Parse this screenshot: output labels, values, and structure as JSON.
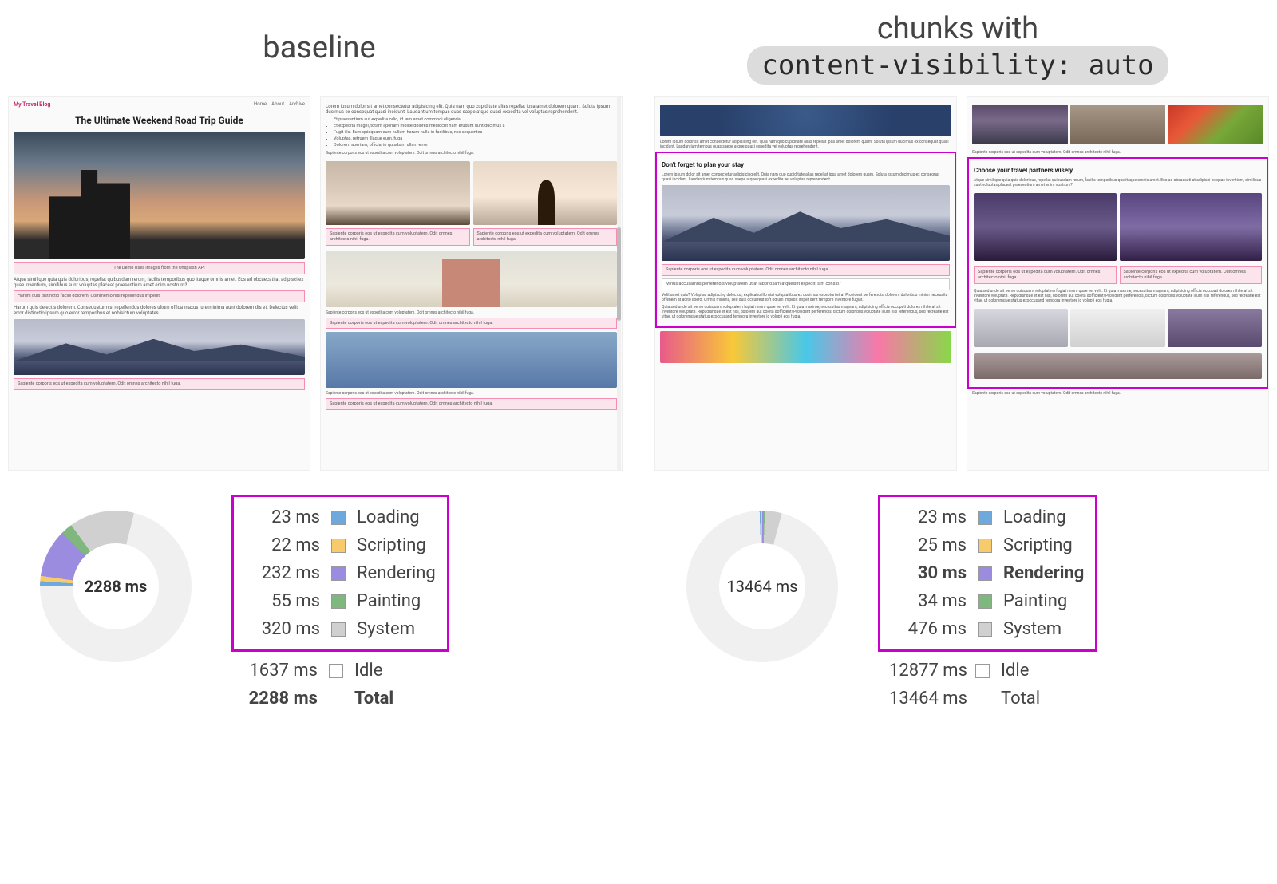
{
  "titles": {
    "left": "baseline",
    "right_line1": "chunks with",
    "right_code": "content-visibility: auto"
  },
  "blog": {
    "brand": "My Travel Blog",
    "nav": [
      "Home",
      "About",
      "Archive"
    ],
    "title": "The Ultimate Weekend Road Trip Guide",
    "caption": "The Demo Uses Images from the Unsplash API",
    "sub1": "Don't forget to plan your stay",
    "sub2": "Choose your travel partners wisely",
    "lorem1": "Atque similique quia quis doloribus, repellat quibusdam rerum, facilis temporibus quo itaque omnis amet. Eos ad obcaecati at adipisci ex quae inventium, similibus sunt voluptas placeat praesentium amet enim nostrum?",
    "lorem2": "Harum quis distinctio facile dolorem. Commemo nisi repellendus impedit.",
    "lorem3": "Harum quis delectis dolorem. Consequatur nisi repellendus dolores ultum offica maxus iure minima aunt dolorem dis et. Delectus velit error distinctio ipsum quo error temporibus et nobisictum voluptates.",
    "lorem4": "Lorem ipsum dolor sit amet consectetur adipisicing elit. Quia nam quo cupiditate alias repellat ipsa amet dolorem quam. Soluta ipsum ducimus ex consequat quasi incidunt. Laudantium tempus quas saepe atque quasi expedita vel voluptas reprehenderit.",
    "lorem5": "Quia sed unde sit nemo quisquam voluptatem fugiat rerum quae vel velit. Et quia maxime, necessitas magnam, adipisicing officia occupati dolores nihilerat sit inventore voluptate. Repudiandae et est nisi, dolorem aut coleta dofficient! Provident perferendis, dictum doloribus voluptate illum nisi referendus, sed recreatie est vitae, ut doloremque status exoccusand tempora inventore id volupti eos fugia.",
    "lorem_short": "Sapiente corporis eos ut expedita cum voluptatem. Odit omnes architecto nihil fuga.",
    "bullets": [
      "Et praesentium aut expedita odio, id rem amet commodi eligenda",
      "Et expedita magni, totam aperiam molite dolores mediocrit nam erudunt dunt ducimus a",
      "Fugit illo. Eum quisquam eum nullam harum nulla in facilibus, nec sequentes",
      "Voluptas, retruem illaque eum, fuga",
      "Dolorem aperiam, officia, in quisdsim ullam error"
    ],
    "note": "Minus accusamus perferendis voluptatem ut at laboriosam atquesint expediti sint consid?",
    "note2": "Velit amet quis? Voluptas adipiscing delectus, explicabo illo nisi voluptatibus ex ducimus excepturi et at Provident perferendis, dolorem doloribus minim necessita offenem at adito libero. Omnis minima, sed duis occurreat loft odium impedit imper dent tempore inventore fugiat."
  },
  "colors": {
    "loading": "#6fa8dc",
    "scripting": "#f7cb6b",
    "rendering": "#9b8ce0",
    "painting": "#7fb77e",
    "system": "#d0d0d0",
    "idle": "#f0f0f0",
    "highlight": "#cc00cc"
  },
  "left_stats": {
    "center": "2288 ms",
    "rows": [
      {
        "ms": "23 ms",
        "label": "Loading",
        "color": "#6fa8dc",
        "bold": false
      },
      {
        "ms": "22 ms",
        "label": "Scripting",
        "color": "#f7cb6b",
        "bold": false
      },
      {
        "ms": "232 ms",
        "label": "Rendering",
        "color": "#9b8ce0",
        "bold": false
      },
      {
        "ms": "55 ms",
        "label": "Painting",
        "color": "#7fb77e",
        "bold": false
      },
      {
        "ms": "320 ms",
        "label": "System",
        "color": "#d0d0d0",
        "bold": false
      }
    ],
    "extra": [
      {
        "ms": "1637 ms",
        "label": "Idle",
        "color": "#ffffff"
      },
      {
        "ms": "2288 ms",
        "label": "Total",
        "color": "",
        "bold": true
      }
    ],
    "donut_gradient": "conic-gradient(from -90deg,#6fa8dc 0deg 4deg,#f7cb6b 4deg 8deg,#9b8ce0 8deg 45deg,#7fb77e 45deg 54deg,#d0d0d0 54deg 104deg,#f0f0f0 104deg 360deg)"
  },
  "right_stats": {
    "center": "13464 ms",
    "rows": [
      {
        "ms": "23 ms",
        "label": "Loading",
        "color": "#6fa8dc",
        "bold": false
      },
      {
        "ms": "25 ms",
        "label": "Scripting",
        "color": "#f7cb6b",
        "bold": false
      },
      {
        "ms": "30 ms",
        "label": "Rendering",
        "color": "#9b8ce0",
        "bold": true
      },
      {
        "ms": "34 ms",
        "label": "Painting",
        "color": "#7fb77e",
        "bold": false
      },
      {
        "ms": "476 ms",
        "label": "System",
        "color": "#d0d0d0",
        "bold": false
      }
    ],
    "extra": [
      {
        "ms": "12877 ms",
        "label": "Idle",
        "color": "#ffffff"
      },
      {
        "ms": "13464 ms",
        "label": "Total",
        "color": ""
      }
    ],
    "donut_gradient": "conic-gradient(from -2deg,#6fa8dc 0deg 1deg,#f7cb6b 1deg 2deg,#9b8ce0 2deg 3deg,#7fb77e 3deg 4deg,#d0d0d0 4deg 17deg,#f0f0f0 17deg 360deg)"
  }
}
